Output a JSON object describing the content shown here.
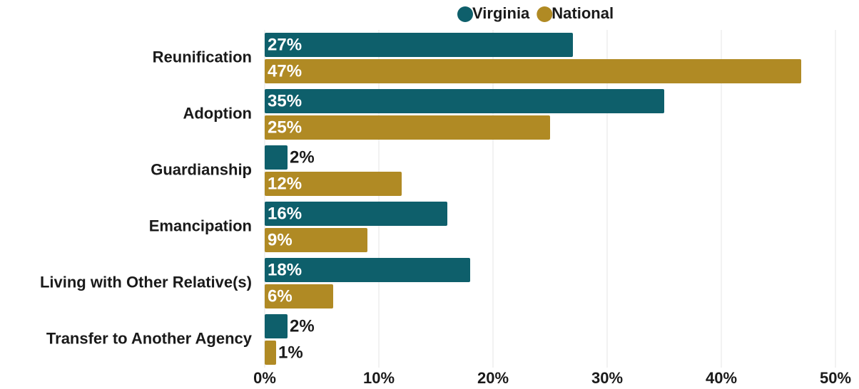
{
  "chart_data": {
    "type": "bar",
    "orientation": "horizontal",
    "categories": [
      "Reunification",
      "Adoption",
      "Guardianship",
      "Emancipation",
      "Living with Other Relative(s)",
      "Transfer to Another Agency"
    ],
    "series": [
      {
        "name": "Virginia",
        "color": "#0e5f6b",
        "values": [
          27,
          35,
          2,
          16,
          18,
          2
        ],
        "value_labels": [
          "27%",
          "35%",
          "2%",
          "16%",
          "18%",
          "2%"
        ]
      },
      {
        "name": "National",
        "color": "#b08a24",
        "values": [
          47,
          25,
          12,
          9,
          6,
          1
        ],
        "value_labels": [
          "47%",
          "25%",
          "12%",
          "9%",
          "6%",
          "1%"
        ]
      }
    ],
    "xlim": [
      0,
      50
    ],
    "xticks": [
      {
        "value": 0,
        "label": "0%"
      },
      {
        "value": 10,
        "label": "10%"
      },
      {
        "value": 20,
        "label": "20%"
      },
      {
        "value": 30,
        "label": "30%"
      },
      {
        "value": 40,
        "label": "40%"
      },
      {
        "value": 50,
        "label": "50%"
      }
    ],
    "grid": true,
    "legend": "top"
  }
}
